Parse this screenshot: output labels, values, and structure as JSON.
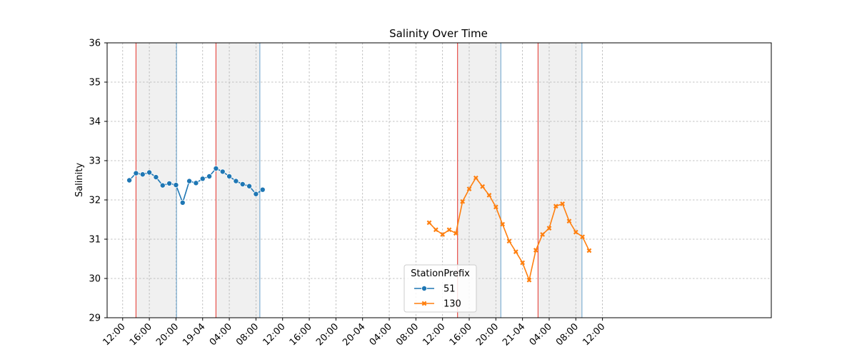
{
  "chart_data": {
    "type": "line",
    "title": "Salinity Over Time",
    "xlabel": "",
    "ylabel": "Salinity",
    "ylim": [
      29,
      36
    ],
    "yticks": [
      29,
      30,
      31,
      32,
      33,
      34,
      35,
      36
    ],
    "xlim": [
      "18-04 09:40",
      "22-04 13:20"
    ],
    "xtick_labels": [
      "12:00",
      "16:00",
      "20:00",
      "19-04",
      "04:00",
      "08:00",
      "12:00",
      "16:00",
      "20:00",
      "20-04",
      "04:00",
      "08:00",
      "12:00",
      "16:00",
      "20:00",
      "21-04",
      "04:00",
      "08:00",
      "12:00"
    ],
    "xtick_times": [
      "18-04 12:00",
      "18-04 16:00",
      "18-04 20:00",
      "19-04 00:00",
      "19-04 04:00",
      "19-04 08:00",
      "19-04 12:00",
      "19-04 16:00",
      "19-04 20:00",
      "20-04 00:00",
      "20-04 04:00",
      "20-04 08:00",
      "20-04 12:00",
      "20-04 16:00",
      "20-04 20:00",
      "21-04 00:00",
      "21-04 04:00",
      "21-04 08:00",
      "21-04 12:00"
    ],
    "grid": true,
    "legend": {
      "title": "StationPrefix",
      "location": "lower-center",
      "entries": [
        "51",
        "130"
      ]
    },
    "series": [
      {
        "name": "51",
        "color": "#1f77b4",
        "marker": "circle",
        "points": [
          [
            "18-04 13:00",
            32.5
          ],
          [
            "18-04 14:00",
            32.68
          ],
          [
            "18-04 15:00",
            32.65
          ],
          [
            "18-04 16:00",
            32.7
          ],
          [
            "18-04 17:00",
            32.58
          ],
          [
            "18-04 18:00",
            32.37
          ],
          [
            "18-04 19:00",
            32.42
          ],
          [
            "18-04 20:00",
            32.38
          ],
          [
            "18-04 21:00",
            31.93
          ],
          [
            "18-04 22:00",
            32.48
          ],
          [
            "18-04 23:00",
            32.43
          ],
          [
            "19-04 00:00",
            32.54
          ],
          [
            "19-04 01:00",
            32.6
          ],
          [
            "19-04 02:00",
            32.8
          ],
          [
            "19-04 03:00",
            32.72
          ],
          [
            "19-04 04:00",
            32.6
          ],
          [
            "19-04 05:00",
            32.48
          ],
          [
            "19-04 06:00",
            32.4
          ],
          [
            "19-04 07:00",
            32.35
          ],
          [
            "19-04 08:00",
            32.15
          ],
          [
            "19-04 09:00",
            32.26
          ]
        ]
      },
      {
        "name": "130",
        "color": "#ff7f0e",
        "marker": "x",
        "points": [
          [
            "20-04 10:00",
            31.42
          ],
          [
            "20-04 11:00",
            31.24
          ],
          [
            "20-04 12:00",
            31.12
          ],
          [
            "20-04 13:00",
            31.24
          ],
          [
            "20-04 14:00",
            31.15
          ],
          [
            "20-04 15:00",
            31.96
          ],
          [
            "20-04 16:00",
            32.28
          ],
          [
            "20-04 17:00",
            32.56
          ],
          [
            "20-04 18:00",
            32.34
          ],
          [
            "20-04 19:00",
            32.12
          ],
          [
            "20-04 20:00",
            31.82
          ],
          [
            "20-04 21:00",
            31.38
          ],
          [
            "20-04 22:00",
            30.95
          ],
          [
            "20-04 23:00",
            30.68
          ],
          [
            "21-04 00:00",
            30.4
          ],
          [
            "21-04 01:00",
            29.96
          ],
          [
            "21-04 02:00",
            30.72
          ],
          [
            "21-04 03:00",
            31.12
          ],
          [
            "21-04 04:00",
            31.28
          ],
          [
            "21-04 05:00",
            31.84
          ],
          [
            "21-04 06:00",
            31.9
          ],
          [
            "21-04 07:00",
            31.46
          ],
          [
            "21-04 08:00",
            31.18
          ],
          [
            "21-04 09:00",
            31.06
          ],
          [
            "21-04 10:00",
            30.71
          ]
        ]
      }
    ],
    "shaded_regions": [
      {
        "start": "18-04 14:00",
        "end": "18-04 20:05",
        "fill": "#f0f0f0",
        "start_line_color": "#e8504a",
        "end_line_color": "#7fb0d4"
      },
      {
        "start": "19-04 02:00",
        "end": "19-04 08:35",
        "fill": "#f0f0f0",
        "start_line_color": "#e8504a",
        "end_line_color": "#7fb0d4"
      },
      {
        "start": "20-04 14:15",
        "end": "20-04 20:45",
        "fill": "#f0f0f0",
        "start_line_color": "#e8504a",
        "end_line_color": "#7fb0d4"
      },
      {
        "start": "21-04 02:20",
        "end": "21-04 08:55",
        "fill": "#f0f0f0",
        "start_line_color": "#e8504a",
        "end_line_color": "#7fb0d4"
      }
    ]
  }
}
